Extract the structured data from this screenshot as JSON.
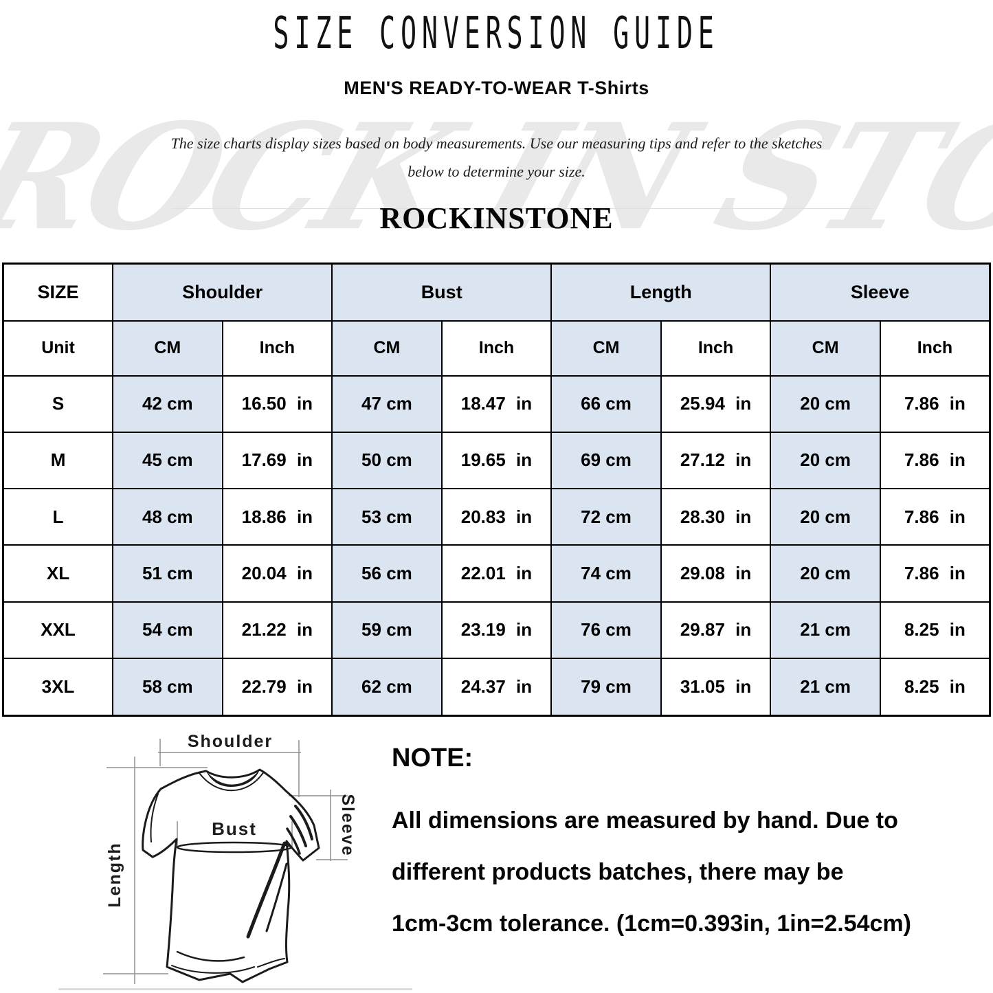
{
  "page": {
    "title": "SIZE CONVERSION GUIDE",
    "subtitle": "MEN'S READY-TO-WEAR T-Shirts",
    "description_line1": "The size charts display sizes based on body measurements. Use our measuring tips and refer to the sketches",
    "description_line2": "below to determine your size.",
    "brand": "ROCKINSTONE",
    "watermark": "ROCK IN STONE"
  },
  "size_table": {
    "col_groups": [
      "SIZE",
      "Shoulder",
      "Bust",
      "Length",
      "Sleeve"
    ],
    "unit_row": [
      "Unit",
      "CM",
      "Inch",
      "CM",
      "Inch",
      "CM",
      "Inch",
      "CM",
      "Inch"
    ],
    "rows": [
      [
        "S",
        "42 cm",
        "16.50 in",
        "47 cm",
        "18.47 in",
        "66 cm",
        "25.94 in",
        "20 cm",
        "7.86 in"
      ],
      [
        "M",
        "45 cm",
        "17.69 in",
        "50 cm",
        "19.65 in",
        "69 cm",
        "27.12 in",
        "20 cm",
        "7.86 in"
      ],
      [
        "L",
        "48 cm",
        "18.86 in",
        "53 cm",
        "20.83 in",
        "72 cm",
        "28.30 in",
        "20 cm",
        "7.86 in"
      ],
      [
        "XL",
        "51 cm",
        "20.04 in",
        "56 cm",
        "22.01 in",
        "74 cm",
        "29.08 in",
        "20 cm",
        "7.86 in"
      ],
      [
        "XXL",
        "54 cm",
        "21.22 in",
        "59 cm",
        "23.19 in",
        "76 cm",
        "29.87 in",
        "21 cm",
        "8.25 in"
      ],
      [
        "3XL",
        "58 cm",
        "22.79 in",
        "62 cm",
        "24.37 in",
        "79 cm",
        "31.05 in",
        "21 cm",
        "8.25 in"
      ]
    ]
  },
  "diagram": {
    "shoulder_label": "Shoulder",
    "bust_label": "Bust",
    "length_label": "Length",
    "sleeve_label": "Sleeve"
  },
  "note": {
    "heading": "NOTE:",
    "lines": [
      "All dimensions are measured by hand. Due to",
      "different products batches, there may be",
      "1cm-3cm tolerance. (1cm=0.393in, 1in=2.54cm)"
    ]
  },
  "colors": {
    "header_blue": "#dbe4f1",
    "border_black": "#000000",
    "watermark_gray": "#e9e9e9"
  }
}
